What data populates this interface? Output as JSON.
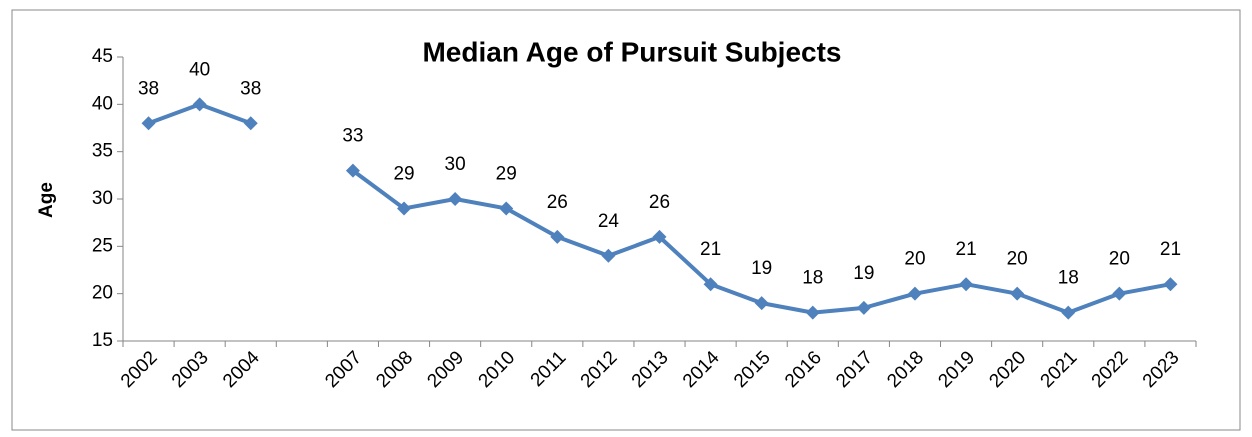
{
  "chart_data": {
    "type": "line",
    "title": "Median Age of Pursuit Subjects",
    "y_label": "Age",
    "categories": [
      "2002",
      "2003",
      "2004",
      null,
      "2007",
      "2008",
      "2009",
      "2010",
      "2011",
      "2012",
      "2013",
      "2014",
      "2015",
      "2016",
      "2017",
      "2018",
      "2019",
      "2020",
      "2021",
      "2022",
      "2023"
    ],
    "series": [
      {
        "name": "Median Age",
        "color": "#4f81bd",
        "values": [
          38,
          40,
          38,
          null,
          33,
          29,
          30,
          29,
          26,
          24,
          26,
          21,
          19,
          18,
          18.5,
          20,
          21,
          20,
          18,
          20,
          21
        ],
        "value_labels": [
          "38",
          "40",
          "38",
          null,
          "33",
          "29",
          "30",
          "29",
          "26",
          "24",
          "26",
          "21",
          "19",
          "18",
          "19",
          "20",
          "21",
          "20",
          "18",
          "20",
          "21"
        ]
      }
    ],
    "ylim": [
      15,
      45
    ],
    "yticks": [
      15,
      20,
      25,
      30,
      35,
      40,
      45
    ],
    "grid": false
  }
}
